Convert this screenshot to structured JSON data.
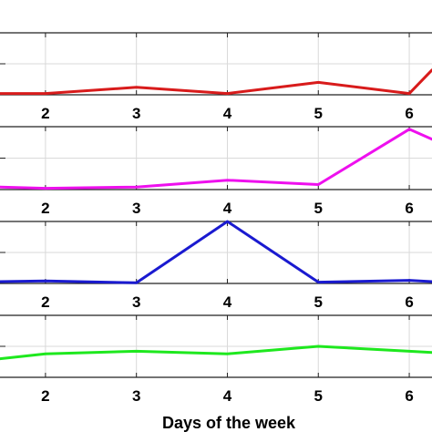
{
  "chart_data": {
    "type": "line",
    "x_ticks": [
      2,
      3,
      4,
      5,
      6
    ],
    "x_tick_labels": [
      "2",
      "3",
      "4",
      "5",
      "6"
    ],
    "xlabel": "Days of the week",
    "xlim": [
      1.5,
      6.25
    ],
    "grid": true,
    "subplots": [
      {
        "color": "#d81b1b",
        "x": [
          1.5,
          2,
          3,
          4,
          5,
          6,
          6.25
        ],
        "y": [
          0.02,
          0.02,
          0.12,
          0.02,
          0.2,
          0.02,
          0.4
        ],
        "ylim": [
          0,
          1
        ]
      },
      {
        "color": "#ee10ee",
        "x": [
          1.5,
          2,
          3,
          4,
          5,
          6,
          6.25
        ],
        "y": [
          0.04,
          0.02,
          0.04,
          0.15,
          0.08,
          0.96,
          0.8
        ],
        "ylim": [
          0,
          1
        ]
      },
      {
        "color": "#1a1ad0",
        "x": [
          1.5,
          2,
          3,
          4,
          5,
          6,
          6.25
        ],
        "y": [
          0.03,
          0.04,
          0.01,
          1.0,
          0.02,
          0.05,
          0.03
        ],
        "ylim": [
          0,
          1
        ]
      },
      {
        "color": "#1ee81e",
        "x": [
          1.5,
          2,
          3,
          4,
          5,
          6,
          6.25
        ],
        "y": [
          0.3,
          0.38,
          0.42,
          0.38,
          0.5,
          0.42,
          0.4
        ],
        "ylim": [
          0,
          1
        ]
      }
    ]
  }
}
